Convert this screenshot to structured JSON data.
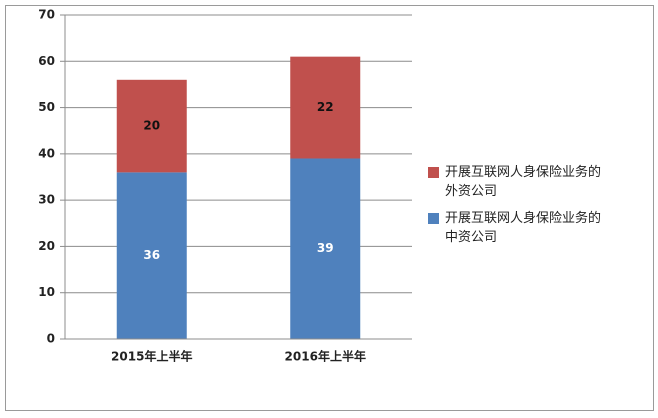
{
  "chart_data": {
    "type": "stacked_bar",
    "categories": [
      "2015年上半年",
      "2016年上半年"
    ],
    "series": [
      {
        "name": "开展互联网人身保险业务的中资公司",
        "color": "#4f81bd",
        "values": [
          36,
          39
        ]
      },
      {
        "name": "开展互联网人身保险业务的外资公司",
        "color": "#c0504d",
        "values": [
          20,
          22
        ]
      }
    ],
    "ylim": [
      0,
      70
    ],
    "yticks": [
      0,
      10,
      20,
      30,
      40,
      50,
      60,
      70
    ],
    "grid": true,
    "legend": "right"
  }
}
